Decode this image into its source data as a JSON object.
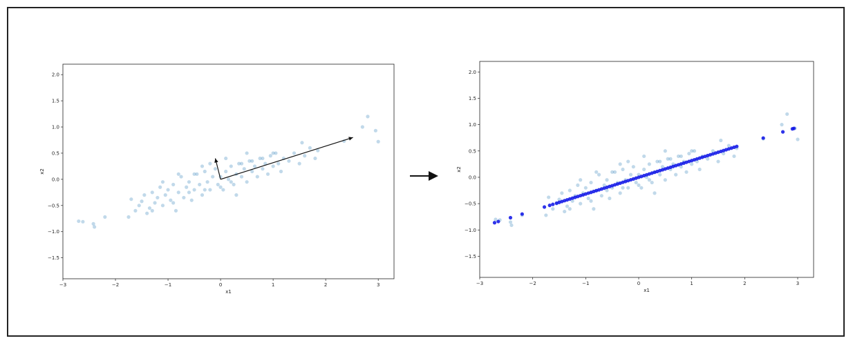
{
  "colors": {
    "scatter": "#1f77b4",
    "projected": "#0a10e6",
    "arrow": "#111111",
    "frame": "#222222"
  },
  "arrow_icon": "right-arrow-icon",
  "chart_data": [
    {
      "type": "scatter",
      "title": "",
      "xlabel": "x1",
      "ylabel": "x2",
      "xlim": [
        -3,
        3.3
      ],
      "ylim": [
        -1.9,
        2.2
      ],
      "xticks": [
        "−3",
        "−2",
        "−1",
        "0",
        "1",
        "2",
        "3"
      ],
      "xtick_values": [
        -3,
        -2,
        -1,
        0,
        1,
        2,
        3
      ],
      "yticks": [
        "−1.5",
        "−1.0",
        "−0.5",
        "0.0",
        "0.5",
        "1.0",
        "1.5",
        "2.0"
      ],
      "ytick_values": [
        -1.5,
        -1.0,
        -0.5,
        0.0,
        0.5,
        1.0,
        1.5,
        2.0
      ],
      "series": [
        {
          "description": "data points (light blue, semi-transparent)",
          "points": [
            [
              -2.7,
              -0.8
            ],
            [
              -2.62,
              -0.81
            ],
            [
              -2.42,
              -0.85
            ],
            [
              -2.4,
              -0.91
            ],
            [
              -2.2,
              -0.72
            ],
            [
              -1.75,
              -0.72
            ],
            [
              -1.7,
              -0.38
            ],
            [
              -1.62,
              -0.6
            ],
            [
              -1.55,
              -0.5
            ],
            [
              -1.5,
              -0.42
            ],
            [
              -1.45,
              -0.3
            ],
            [
              -1.4,
              -0.65
            ],
            [
              -1.35,
              -0.55
            ],
            [
              -1.3,
              -0.25
            ],
            [
              -1.25,
              -0.45
            ],
            [
              -1.2,
              -0.35
            ],
            [
              -1.15,
              -0.15
            ],
            [
              -1.1,
              -0.5
            ],
            [
              -1.05,
              -0.3
            ],
            [
              -1.0,
              -0.2
            ],
            [
              -0.95,
              -0.4
            ],
            [
              -0.9,
              -0.1
            ],
            [
              -0.85,
              -0.6
            ],
            [
              -0.8,
              -0.25
            ],
            [
              -0.75,
              0.05
            ],
            [
              -0.7,
              -0.35
            ],
            [
              -0.65,
              -0.15
            ],
            [
              -0.6,
              -0.05
            ],
            [
              -0.55,
              -0.4
            ],
            [
              -0.5,
              -0.2
            ],
            [
              -0.45,
              0.1
            ],
            [
              -0.4,
              -0.1
            ],
            [
              -0.35,
              -0.3
            ],
            [
              -0.3,
              0.15
            ],
            [
              -0.25,
              -0.05
            ],
            [
              -0.2,
              -0.2
            ],
            [
              -0.15,
              0.05
            ],
            [
              -0.1,
              0.2
            ],
            [
              -0.05,
              -0.1
            ],
            [
              0.0,
              0.05
            ],
            [
              0.05,
              -0.2
            ],
            [
              0.1,
              0.15
            ],
            [
              0.15,
              0.0
            ],
            [
              0.2,
              0.25
            ],
            [
              0.25,
              -0.1
            ],
            [
              0.3,
              0.1
            ],
            [
              0.35,
              0.3
            ],
            [
              0.4,
              0.05
            ],
            [
              0.45,
              0.2
            ],
            [
              0.5,
              -0.05
            ],
            [
              0.55,
              0.35
            ],
            [
              0.6,
              0.15
            ],
            [
              0.65,
              0.25
            ],
            [
              0.7,
              0.05
            ],
            [
              0.75,
              0.4
            ],
            [
              0.8,
              0.2
            ],
            [
              0.85,
              0.3
            ],
            [
              0.9,
              0.1
            ],
            [
              0.95,
              0.45
            ],
            [
              1.0,
              0.25
            ],
            [
              1.05,
              0.5
            ],
            [
              1.1,
              0.3
            ],
            [
              1.15,
              0.15
            ],
            [
              1.2,
              0.4
            ],
            [
              1.3,
              0.35
            ],
            [
              1.4,
              0.5
            ],
            [
              1.5,
              0.3
            ],
            [
              1.55,
              0.7
            ],
            [
              1.6,
              0.45
            ],
            [
              1.7,
              0.6
            ],
            [
              1.8,
              0.4
            ],
            [
              1.85,
              0.55
            ],
            [
              -1.3,
              -0.6
            ],
            [
              -0.9,
              -0.45
            ],
            [
              -0.6,
              -0.25
            ],
            [
              -0.3,
              -0.2
            ],
            [
              0.0,
              -0.15
            ],
            [
              0.2,
              -0.05
            ],
            [
              0.4,
              0.3
            ],
            [
              0.6,
              0.35
            ],
            [
              0.8,
              0.4
            ],
            [
              1.0,
              0.5
            ],
            [
              -0.2,
              0.3
            ],
            [
              -0.5,
              0.1
            ],
            [
              -0.8,
              0.1
            ],
            [
              -1.1,
              -0.05
            ],
            [
              0.1,
              0.4
            ],
            [
              0.5,
              0.5
            ],
            [
              -0.35,
              0.25
            ],
            [
              0.3,
              -0.3
            ],
            [
              2.35,
              0.73
            ],
            [
              2.7,
              1.0
            ],
            [
              2.8,
              1.2
            ],
            [
              2.95,
              0.93
            ],
            [
              3.0,
              0.72
            ]
          ]
        }
      ],
      "annotations": {
        "description": "principal component arrows drawn from origin",
        "arrows": [
          {
            "from": [
              0.0,
              0.0
            ],
            "to": [
              2.52,
              0.8
            ]
          },
          {
            "from": [
              0.0,
              0.0
            ],
            "to": [
              -0.1,
              0.4
            ]
          }
        ]
      }
    },
    {
      "type": "scatter",
      "title": "",
      "xlabel": "x1",
      "ylabel": "x2",
      "xlim": [
        -3,
        3.3
      ],
      "ylim": [
        -1.9,
        2.2
      ],
      "xticks": [
        "−3",
        "−2",
        "−1",
        "0",
        "1",
        "2",
        "3"
      ],
      "xtick_values": [
        -3,
        -2,
        -1,
        0,
        1,
        2,
        3
      ],
      "yticks": [
        "−1.5",
        "−1.0",
        "−0.5",
        "0.0",
        "0.5",
        "1.0",
        "1.5",
        "2.0"
      ],
      "ytick_values": [
        -1.5,
        -1.0,
        -0.5,
        0.0,
        0.5,
        1.0,
        1.5,
        2.0
      ],
      "series": [
        {
          "description": "original data points (light blue, semi-transparent)",
          "points": [
            [
              -2.7,
              -0.8
            ],
            [
              -2.62,
              -0.81
            ],
            [
              -2.42,
              -0.85
            ],
            [
              -2.4,
              -0.91
            ],
            [
              -2.2,
              -0.72
            ],
            [
              -1.75,
              -0.72
            ],
            [
              -1.7,
              -0.38
            ],
            [
              -1.62,
              -0.6
            ],
            [
              -1.55,
              -0.5
            ],
            [
              -1.5,
              -0.42
            ],
            [
              -1.45,
              -0.3
            ],
            [
              -1.4,
              -0.65
            ],
            [
              -1.35,
              -0.55
            ],
            [
              -1.3,
              -0.25
            ],
            [
              -1.25,
              -0.45
            ],
            [
              -1.2,
              -0.35
            ],
            [
              -1.15,
              -0.15
            ],
            [
              -1.1,
              -0.5
            ],
            [
              -1.05,
              -0.3
            ],
            [
              -1.0,
              -0.2
            ],
            [
              -0.95,
              -0.4
            ],
            [
              -0.9,
              -0.1
            ],
            [
              -0.85,
              -0.6
            ],
            [
              -0.8,
              -0.25
            ],
            [
              -0.75,
              0.05
            ],
            [
              -0.7,
              -0.35
            ],
            [
              -0.65,
              -0.15
            ],
            [
              -0.6,
              -0.05
            ],
            [
              -0.55,
              -0.4
            ],
            [
              -0.5,
              -0.2
            ],
            [
              -0.45,
              0.1
            ],
            [
              -0.4,
              -0.1
            ],
            [
              -0.35,
              -0.3
            ],
            [
              -0.3,
              0.15
            ],
            [
              -0.25,
              -0.05
            ],
            [
              -0.2,
              -0.2
            ],
            [
              -0.15,
              0.05
            ],
            [
              -0.1,
              0.2
            ],
            [
              -0.05,
              -0.1
            ],
            [
              0.0,
              0.05
            ],
            [
              0.05,
              -0.2
            ],
            [
              0.1,
              0.15
            ],
            [
              0.15,
              0.0
            ],
            [
              0.2,
              0.25
            ],
            [
              0.25,
              -0.1
            ],
            [
              0.3,
              0.1
            ],
            [
              0.35,
              0.3
            ],
            [
              0.4,
              0.05
            ],
            [
              0.45,
              0.2
            ],
            [
              0.5,
              -0.05
            ],
            [
              0.55,
              0.35
            ],
            [
              0.6,
              0.15
            ],
            [
              0.65,
              0.25
            ],
            [
              0.7,
              0.05
            ],
            [
              0.75,
              0.4
            ],
            [
              0.8,
              0.2
            ],
            [
              0.85,
              0.3
            ],
            [
              0.9,
              0.1
            ],
            [
              0.95,
              0.45
            ],
            [
              1.0,
              0.25
            ],
            [
              1.05,
              0.5
            ],
            [
              1.1,
              0.3
            ],
            [
              1.15,
              0.15
            ],
            [
              1.2,
              0.4
            ],
            [
              1.3,
              0.35
            ],
            [
              1.4,
              0.5
            ],
            [
              1.5,
              0.3
            ],
            [
              1.55,
              0.7
            ],
            [
              1.6,
              0.45
            ],
            [
              1.7,
              0.6
            ],
            [
              1.8,
              0.4
            ],
            [
              1.85,
              0.55
            ],
            [
              -1.3,
              -0.6
            ],
            [
              -0.9,
              -0.45
            ],
            [
              -0.6,
              -0.25
            ],
            [
              -0.3,
              -0.2
            ],
            [
              0.0,
              -0.15
            ],
            [
              0.2,
              -0.05
            ],
            [
              0.4,
              0.3
            ],
            [
              0.6,
              0.35
            ],
            [
              0.8,
              0.4
            ],
            [
              1.0,
              0.5
            ],
            [
              -0.2,
              0.3
            ],
            [
              -0.5,
              0.1
            ],
            [
              -0.8,
              0.1
            ],
            [
              -1.1,
              -0.05
            ],
            [
              0.1,
              0.4
            ],
            [
              0.5,
              0.5
            ],
            [
              -0.35,
              0.25
            ],
            [
              0.3,
              -0.3
            ],
            [
              2.35,
              0.73
            ],
            [
              2.7,
              1.0
            ],
            [
              2.8,
              1.2
            ],
            [
              2.95,
              0.93
            ],
            [
              3.0,
              0.72
            ]
          ]
        },
        {
          "description": "points projected onto first principal axis (dark blue)",
          "line_slope": 0.317,
          "x": [
            -2.72,
            -2.65,
            -2.42,
            -2.2,
            -1.78,
            -1.68,
            -1.62,
            -1.55,
            -1.5,
            -1.45,
            -1.4,
            -1.35,
            -1.3,
            -1.25,
            -1.2,
            -1.15,
            -1.1,
            -1.05,
            -1.0,
            -0.95,
            -0.9,
            -0.85,
            -0.8,
            -0.75,
            -0.7,
            -0.65,
            -0.6,
            -0.55,
            -0.5,
            -0.45,
            -0.4,
            -0.35,
            -0.3,
            -0.25,
            -0.2,
            -0.15,
            -0.1,
            -0.05,
            0.0,
            0.05,
            0.1,
            0.15,
            0.2,
            0.25,
            0.3,
            0.35,
            0.4,
            0.45,
            0.5,
            0.55,
            0.6,
            0.65,
            0.7,
            0.75,
            0.8,
            0.85,
            0.9,
            0.95,
            1.0,
            1.05,
            1.1,
            1.15,
            1.2,
            1.25,
            1.3,
            1.35,
            1.4,
            1.45,
            1.5,
            1.55,
            1.6,
            1.65,
            1.7,
            1.75,
            1.8,
            1.85,
            2.35,
            2.72,
            2.9,
            2.93
          ]
        }
      ]
    }
  ]
}
